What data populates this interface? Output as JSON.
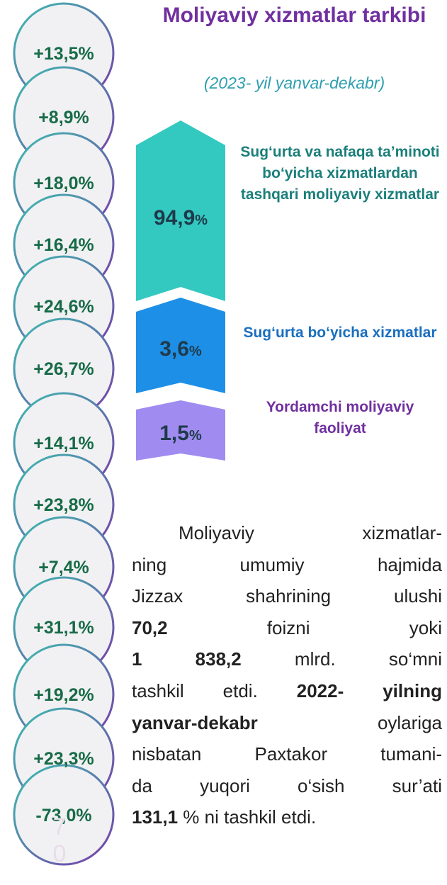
{
  "header": {
    "title": "Moliyaviy xizmatlar tarkibi",
    "subtitle": "(2023- yil yanvar-dekabr)"
  },
  "growth_rates": [
    "+13,5%",
    "+8,9%",
    "+18,0%",
    "+16,4%",
    "+24,6%",
    "+26,7%",
    "+14,1%",
    "+23,8%",
    "+7,4%",
    "+31,1%",
    "+19,2%",
    "+23,3%",
    "-73,0%"
  ],
  "structure": [
    {
      "value": "94,9",
      "unit": "%",
      "label": "Sug‘urta va nafaqa ta’minoti bo‘yicha xizmatlardan tashqari moliyaviy xizmatlar",
      "color": "#33c9c0",
      "label_color": "#1b7f7a"
    },
    {
      "value": "3,6",
      "unit": "%",
      "label": "Sug‘urta bo‘yicha xizmatlar",
      "color": "#1e8fe6",
      "label_color": "#1a6fbf"
    },
    {
      "value": "1,5",
      "unit": "%",
      "label": "Yordamchi moliyaviy faoliyat",
      "color": "#a08cf0",
      "label_color": "#7030a0"
    }
  ],
  "paragraph": {
    "lines": [
      [
        {
          "text": "Moliyaviy xizmatlar-",
          "bold": false
        }
      ],
      [
        {
          "text": "ning umumiy hajmida",
          "bold": false
        }
      ],
      [
        {
          "text": "Jizzax shahrining ulushi",
          "bold": false
        }
      ],
      [
        {
          "text": "70,2",
          "bold": true
        },
        {
          "text": " foizni yoki",
          "bold": false
        }
      ],
      [
        {
          "text": "1 838,2",
          "bold": true
        },
        {
          "text": " mlrd. so‘mni",
          "bold": false
        }
      ],
      [
        {
          "text": "tashkil etdi. ",
          "bold": false
        },
        {
          "text": "2022- yilning",
          "bold": true
        }
      ],
      [
        {
          "text": "yanvar-dekabr",
          "bold": true
        },
        {
          "text": " oylariga",
          "bold": false
        }
      ],
      [
        {
          "text": "nisbatan Paxtakor tumani-",
          "bold": false
        }
      ],
      [
        {
          "text": "da yuqori o‘sish sur’ati",
          "bold": false
        }
      ],
      [
        {
          "text": "131,1",
          "bold": true
        },
        {
          "text": " % ni tashkil etdi.",
          "bold": false
        }
      ]
    ]
  },
  "page_number": "70"
}
